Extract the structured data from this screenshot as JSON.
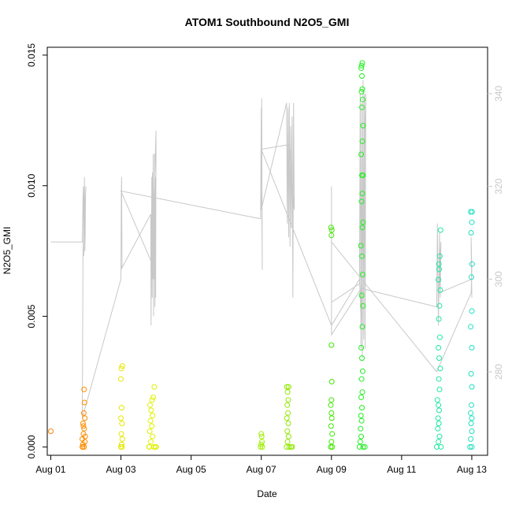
{
  "chart_data": {
    "type": "scatter",
    "title": "ATOM1 Southbound N2O5_GMI",
    "xlabel": "Date",
    "ylabel": "N2O5_GMI",
    "x_unit": "days since Aug 01",
    "xlim": [
      -0.1,
      12.45
    ],
    "ylim": [
      -0.00032,
      0.0153
    ],
    "y_ticks": [
      "0.000",
      "0.005",
      "0.010",
      "0.015"
    ],
    "x_ticks": [
      {
        "value": 0,
        "label": "Aug 01"
      },
      {
        "value": 2,
        "label": "Aug 03"
      },
      {
        "value": 4,
        "label": "Aug 05"
      },
      {
        "value": 6,
        "label": "Aug 07"
      },
      {
        "value": 8,
        "label": "Aug 09"
      },
      {
        "value": 10,
        "label": "Aug 11"
      },
      {
        "value": 12,
        "label": "Aug 13"
      }
    ],
    "y2lim": [
      262,
      350
    ],
    "y2_ticks": [
      "280",
      "300",
      "320",
      "340"
    ],
    "y2_color": "#c8c8c8",
    "grid": false,
    "legend": "none",
    "series": [
      {
        "marker": "open-circle",
        "points": [
          {
            "x": 0.0,
            "y": 0.0006,
            "color": "#ff8000"
          },
          {
            "x": 0.9,
            "y": 0.0,
            "color": "#ff8c00"
          },
          {
            "x": 0.92,
            "y": 0.0001,
            "color": "#ff8c00"
          },
          {
            "x": 0.95,
            "y": 0.0,
            "color": "#ff8c00"
          },
          {
            "x": 0.97,
            "y": 0.0002,
            "color": "#ff8c00"
          },
          {
            "x": 0.9,
            "y": 0.0003,
            "color": "#ff8c00"
          },
          {
            "x": 0.93,
            "y": 0.0005,
            "color": "#ff8c00"
          },
          {
            "x": 0.95,
            "y": 0.0007,
            "color": "#ff8c00"
          },
          {
            "x": 0.92,
            "y": 0.0009,
            "color": "#ff8c00"
          },
          {
            "x": 0.97,
            "y": 0.0011,
            "color": "#ff8c00"
          },
          {
            "x": 0.94,
            "y": 0.0013,
            "color": "#ff8c00"
          },
          {
            "x": 0.96,
            "y": 0.0017,
            "color": "#ff8c00"
          },
          {
            "x": 0.95,
            "y": 0.0022,
            "color": "#ff8c00"
          },
          {
            "x": 0.91,
            "y": 0.0,
            "color": "#ff8c00"
          },
          {
            "x": 0.98,
            "y": 0.0004,
            "color": "#ff8c00"
          },
          {
            "x": 0.93,
            "y": 0.0008,
            "color": "#ff8c00"
          },
          {
            "x": 2.0,
            "y": 0.0,
            "color": "#e6e600"
          },
          {
            "x": 2.02,
            "y": 0.0001,
            "color": "#e6e600"
          },
          {
            "x": 2.04,
            "y": 0.0003,
            "color": "#e6e600"
          },
          {
            "x": 2.01,
            "y": 0.0005,
            "color": "#e6e600"
          },
          {
            "x": 2.03,
            "y": 0.0009,
            "color": "#e6e600"
          },
          {
            "x": 2.0,
            "y": 0.0011,
            "color": "#e6e600"
          },
          {
            "x": 2.02,
            "y": 0.0015,
            "color": "#e6e600"
          },
          {
            "x": 2.0,
            "y": 0.0026,
            "color": "#e6e600"
          },
          {
            "x": 2.01,
            "y": 0.003,
            "color": "#e6e600"
          },
          {
            "x": 2.04,
            "y": 0.0031,
            "color": "#e6e600"
          },
          {
            "x": 2.03,
            "y": 0.0,
            "color": "#e6e600"
          },
          {
            "x": 2.8,
            "y": 0.0,
            "color": "#e0f000"
          },
          {
            "x": 2.85,
            "y": 0.0002,
            "color": "#e0f000"
          },
          {
            "x": 2.9,
            "y": 0.0004,
            "color": "#e0f000"
          },
          {
            "x": 2.82,
            "y": 0.0006,
            "color": "#e0f000"
          },
          {
            "x": 2.88,
            "y": 0.0008,
            "color": "#e0f000"
          },
          {
            "x": 2.84,
            "y": 0.001,
            "color": "#e0f000"
          },
          {
            "x": 2.9,
            "y": 0.0012,
            "color": "#e0f000"
          },
          {
            "x": 2.86,
            "y": 0.0014,
            "color": "#e0f000"
          },
          {
            "x": 2.83,
            "y": 0.0016,
            "color": "#e0f000"
          },
          {
            "x": 2.89,
            "y": 0.0018,
            "color": "#e0f000"
          },
          {
            "x": 2.92,
            "y": 0.0019,
            "color": "#e0f000"
          },
          {
            "x": 2.95,
            "y": 0.0023,
            "color": "#e0f000"
          },
          {
            "x": 2.94,
            "y": 0.0,
            "color": "#e0f000"
          },
          {
            "x": 2.98,
            "y": 0.0,
            "color": "#e0f000"
          },
          {
            "x": 3.0,
            "y": 0.0,
            "color": "#e0f000"
          },
          {
            "x": 2.81,
            "y": 0.0,
            "color": "#e0f000"
          },
          {
            "x": 5.98,
            "y": 0.0,
            "color": "#9ff000"
          },
          {
            "x": 6.0,
            "y": 0.0001,
            "color": "#9ff000"
          },
          {
            "x": 6.02,
            "y": 0.0002,
            "color": "#9ff000"
          },
          {
            "x": 6.01,
            "y": 0.0004,
            "color": "#9ff000"
          },
          {
            "x": 6.0,
            "y": 0.0005,
            "color": "#9ff000"
          },
          {
            "x": 6.03,
            "y": 0.0,
            "color": "#9ff000"
          },
          {
            "x": 6.72,
            "y": 0.0,
            "color": "#90e800"
          },
          {
            "x": 6.75,
            "y": 0.0002,
            "color": "#90e800"
          },
          {
            "x": 6.78,
            "y": 0.0004,
            "color": "#90e800"
          },
          {
            "x": 6.74,
            "y": 0.0006,
            "color": "#90e800"
          },
          {
            "x": 6.77,
            "y": 0.0009,
            "color": "#90e800"
          },
          {
            "x": 6.73,
            "y": 0.0011,
            "color": "#90e800"
          },
          {
            "x": 6.76,
            "y": 0.0013,
            "color": "#90e800"
          },
          {
            "x": 6.74,
            "y": 0.0016,
            "color": "#90e800"
          },
          {
            "x": 6.77,
            "y": 0.0018,
            "color": "#90e800"
          },
          {
            "x": 6.75,
            "y": 0.0021,
            "color": "#90e800"
          },
          {
            "x": 6.73,
            "y": 0.0023,
            "color": "#90e800"
          },
          {
            "x": 6.78,
            "y": 0.0023,
            "color": "#90e800"
          },
          {
            "x": 6.8,
            "y": 0.0,
            "color": "#90e800"
          },
          {
            "x": 6.85,
            "y": 0.0,
            "color": "#90e800"
          },
          {
            "x": 6.88,
            "y": 0.0,
            "color": "#90e800"
          },
          {
            "x": 7.98,
            "y": 0.0,
            "color": "#40e800"
          },
          {
            "x": 8.0,
            "y": 0.0002,
            "color": "#40e800"
          },
          {
            "x": 8.02,
            "y": 0.0005,
            "color": "#40e800"
          },
          {
            "x": 7.99,
            "y": 0.0008,
            "color": "#40e800"
          },
          {
            "x": 8.01,
            "y": 0.0011,
            "color": "#40e800"
          },
          {
            "x": 8.0,
            "y": 0.0013,
            "color": "#40e800"
          },
          {
            "x": 7.98,
            "y": 0.0016,
            "color": "#40e800"
          },
          {
            "x": 8.0,
            "y": 0.0018,
            "color": "#40e800"
          },
          {
            "x": 8.01,
            "y": 0.0025,
            "color": "#40e800"
          },
          {
            "x": 8.0,
            "y": 0.0039,
            "color": "#40e800"
          },
          {
            "x": 8.0,
            "y": 0.0081,
            "color": "#40e800"
          },
          {
            "x": 8.01,
            "y": 0.0083,
            "color": "#40e800"
          },
          {
            "x": 7.99,
            "y": 0.0084,
            "color": "#40e800"
          },
          {
            "x": 8.02,
            "y": 0.0,
            "color": "#40e800"
          },
          {
            "x": 8.8,
            "y": 0.0,
            "color": "#20f020"
          },
          {
            "x": 8.82,
            "y": 0.0002,
            "color": "#20f020"
          },
          {
            "x": 8.85,
            "y": 0.0004,
            "color": "#20f020"
          },
          {
            "x": 8.83,
            "y": 0.0007,
            "color": "#20f020"
          },
          {
            "x": 8.86,
            "y": 0.001,
            "color": "#20f020"
          },
          {
            "x": 8.84,
            "y": 0.0012,
            "color": "#20f020"
          },
          {
            "x": 8.87,
            "y": 0.0015,
            "color": "#20f020"
          },
          {
            "x": 8.85,
            "y": 0.0019,
            "color": "#20f020"
          },
          {
            "x": 8.88,
            "y": 0.0021,
            "color": "#20f020"
          },
          {
            "x": 8.86,
            "y": 0.0026,
            "color": "#20f020"
          },
          {
            "x": 8.89,
            "y": 0.0029,
            "color": "#20f020"
          },
          {
            "x": 8.87,
            "y": 0.0034,
            "color": "#20f020"
          },
          {
            "x": 8.85,
            "y": 0.0038,
            "color": "#20f020"
          },
          {
            "x": 8.88,
            "y": 0.0046,
            "color": "#20f020"
          },
          {
            "x": 8.9,
            "y": 0.0054,
            "color": "#20f020"
          },
          {
            "x": 8.86,
            "y": 0.0058,
            "color": "#20f020"
          },
          {
            "x": 8.89,
            "y": 0.0066,
            "color": "#20f020"
          },
          {
            "x": 8.87,
            "y": 0.0073,
            "color": "#20f020"
          },
          {
            "x": 8.84,
            "y": 0.0077,
            "color": "#20f020"
          },
          {
            "x": 8.88,
            "y": 0.0084,
            "color": "#20f020"
          },
          {
            "x": 8.9,
            "y": 0.0086,
            "color": "#20f020"
          },
          {
            "x": 8.86,
            "y": 0.0094,
            "color": "#20f020"
          },
          {
            "x": 8.88,
            "y": 0.0097,
            "color": "#20f020"
          },
          {
            "x": 8.87,
            "y": 0.0104,
            "color": "#20f020"
          },
          {
            "x": 8.9,
            "y": 0.0104,
            "color": "#20f020"
          },
          {
            "x": 8.85,
            "y": 0.0112,
            "color": "#20f020"
          },
          {
            "x": 8.88,
            "y": 0.0117,
            "color": "#20f020"
          },
          {
            "x": 8.9,
            "y": 0.0123,
            "color": "#20f020"
          },
          {
            "x": 8.87,
            "y": 0.013,
            "color": "#20f020"
          },
          {
            "x": 8.89,
            "y": 0.0133,
            "color": "#20f020"
          },
          {
            "x": 8.86,
            "y": 0.0136,
            "color": "#20f020"
          },
          {
            "x": 8.88,
            "y": 0.0137,
            "color": "#20f020"
          },
          {
            "x": 8.87,
            "y": 0.0142,
            "color": "#20f020"
          },
          {
            "x": 8.85,
            "y": 0.0145,
            "color": "#20f020"
          },
          {
            "x": 8.86,
            "y": 0.0146,
            "color": "#20f020"
          },
          {
            "x": 8.88,
            "y": 0.0147,
            "color": "#20f020"
          },
          {
            "x": 8.9,
            "y": 0.0,
            "color": "#20f020"
          },
          {
            "x": 8.95,
            "y": 0.0,
            "color": "#20f020"
          },
          {
            "x": 11.0,
            "y": 0.0,
            "color": "#20e8a0"
          },
          {
            "x": 11.05,
            "y": 0.0002,
            "color": "#20e8a0"
          },
          {
            "x": 11.08,
            "y": 0.0004,
            "color": "#20e8a0"
          },
          {
            "x": 11.03,
            "y": 0.0007,
            "color": "#20e8a0"
          },
          {
            "x": 11.06,
            "y": 0.0009,
            "color": "#20e8a0"
          },
          {
            "x": 11.04,
            "y": 0.0011,
            "color": "#20e8a0"
          },
          {
            "x": 11.07,
            "y": 0.0014,
            "color": "#20e8a0"
          },
          {
            "x": 11.05,
            "y": 0.0016,
            "color": "#20e8a0"
          },
          {
            "x": 11.02,
            "y": 0.0018,
            "color": "#20e8a0"
          },
          {
            "x": 11.08,
            "y": 0.0022,
            "color": "#20e8a0"
          },
          {
            "x": 11.06,
            "y": 0.0026,
            "color": "#20e8a0"
          },
          {
            "x": 11.1,
            "y": 0.003,
            "color": "#20e8a0"
          },
          {
            "x": 11.07,
            "y": 0.0034,
            "color": "#20e8a0"
          },
          {
            "x": 11.05,
            "y": 0.0038,
            "color": "#20e8a0"
          },
          {
            "x": 11.09,
            "y": 0.0042,
            "color": "#20e8a0"
          },
          {
            "x": 11.06,
            "y": 0.0049,
            "color": "#20e8a0"
          },
          {
            "x": 11.08,
            "y": 0.0054,
            "color": "#20e8a0"
          },
          {
            "x": 11.1,
            "y": 0.006,
            "color": "#20e8a0"
          },
          {
            "x": 11.05,
            "y": 0.0064,
            "color": "#20e8a0"
          },
          {
            "x": 11.07,
            "y": 0.0068,
            "color": "#20e8a0"
          },
          {
            "x": 11.06,
            "y": 0.007,
            "color": "#20e8a0"
          },
          {
            "x": 11.09,
            "y": 0.0073,
            "color": "#20e8a0"
          },
          {
            "x": 11.11,
            "y": 0.0083,
            "color": "#20e8a0"
          },
          {
            "x": 11.12,
            "y": 0.0,
            "color": "#20e8a0"
          },
          {
            "x": 11.95,
            "y": 0.0,
            "color": "#20e0c0"
          },
          {
            "x": 11.97,
            "y": 0.0003,
            "color": "#20e0c0"
          },
          {
            "x": 12.0,
            "y": 0.0006,
            "color": "#20e0c0"
          },
          {
            "x": 11.98,
            "y": 0.0009,
            "color": "#20e0c0"
          },
          {
            "x": 12.0,
            "y": 0.0011,
            "color": "#20e0c0"
          },
          {
            "x": 11.97,
            "y": 0.0013,
            "color": "#20e0c0"
          },
          {
            "x": 11.99,
            "y": 0.0016,
            "color": "#20e0c0"
          },
          {
            "x": 12.0,
            "y": 0.0023,
            "color": "#20e0c0"
          },
          {
            "x": 11.98,
            "y": 0.0028,
            "color": "#20e0c0"
          },
          {
            "x": 12.0,
            "y": 0.0038,
            "color": "#20e0c0"
          },
          {
            "x": 11.97,
            "y": 0.0046,
            "color": "#20e0c0"
          },
          {
            "x": 12.0,
            "y": 0.0052,
            "color": "#20e0c0"
          },
          {
            "x": 11.99,
            "y": 0.0065,
            "color": "#20e0c0"
          },
          {
            "x": 12.01,
            "y": 0.007,
            "color": "#20e0c0"
          },
          {
            "x": 11.98,
            "y": 0.0082,
            "color": "#20e0c0"
          },
          {
            "x": 12.0,
            "y": 0.0086,
            "color": "#20e0c0"
          },
          {
            "x": 11.97,
            "y": 0.009,
            "color": "#20e0c0"
          },
          {
            "x": 12.01,
            "y": 0.009,
            "color": "#20e0c0"
          },
          {
            "x": 12.0,
            "y": 0.0,
            "color": "#20e0c0"
          }
        ]
      },
      {
        "axis": "right",
        "color": "#c8c8c8",
        "x": [
          0.0,
          0.9,
          0.92,
          0.93,
          0.94,
          0.95,
          0.96,
          0.97,
          0.98,
          0.99,
          1.0,
          0.92,
          0.9,
          2.0,
          2.01,
          2.02,
          2.03,
          2.0,
          2.85,
          2.86,
          2.88,
          2.89,
          2.9,
          2.91,
          2.92,
          2.93,
          2.94,
          2.95,
          2.96,
          2.97,
          2.98,
          2.99,
          3.0,
          2.9,
          2.85,
          2.0,
          5.98,
          6.0,
          6.02,
          6.01,
          6.03,
          6.0,
          6.02,
          6.0,
          6.72,
          6.74,
          6.76,
          6.78,
          6.8,
          6.82,
          6.84,
          6.86,
          6.88,
          6.9,
          6.92,
          6.94,
          6.8,
          6.0,
          8.0,
          8.0,
          8.0,
          8.8,
          8.82,
          8.84,
          8.86,
          8.88,
          8.9,
          8.92,
          8.94,
          8.96,
          8.98,
          8.85,
          8.8,
          8.0,
          8.0,
          8.85,
          11.0,
          11.02,
          11.05,
          11.08,
          11.1,
          11.12,
          11.06,
          12.0,
          11.98,
          12.0,
          11.98,
          12.0,
          11.98,
          11.0,
          8.0
        ]
      }
    ]
  }
}
